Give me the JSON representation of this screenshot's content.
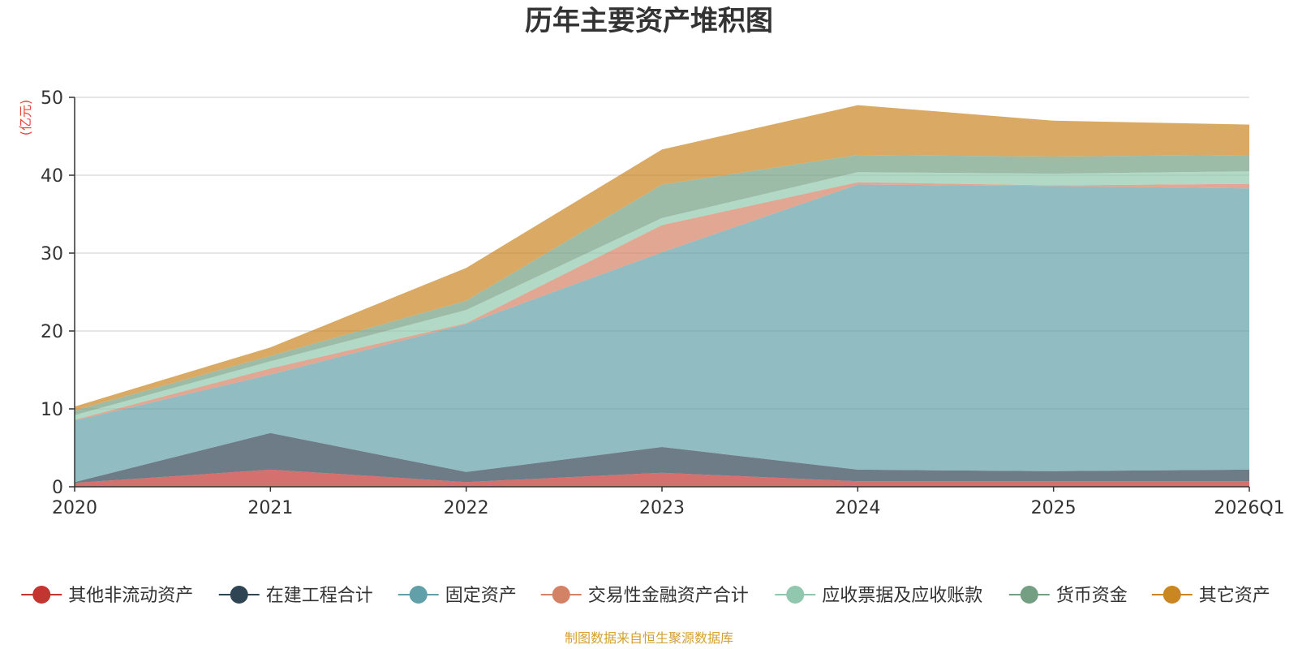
{
  "chart_data": {
    "type": "area",
    "stacked": true,
    "title": "历年主要资产堆积图",
    "unit_label": "(亿元)",
    "source": "制图数据来自恒生聚源数据库",
    "categories": [
      "2020",
      "2021",
      "2022",
      "2023",
      "2024",
      "2025",
      "2026Q1"
    ],
    "y_ticks": [
      "0",
      "10",
      "20",
      "30",
      "40",
      "50"
    ],
    "ylim": [
      0,
      50
    ],
    "series": [
      {
        "name": "其他非流动资产",
        "color": "#c23531",
        "values": [
          0.5,
          2.2,
          0.6,
          1.8,
          0.7,
          0.7,
          0.7
        ]
      },
      {
        "name": "在建工程合计",
        "color": "#2f4554",
        "values": [
          0.1,
          4.7,
          1.3,
          3.3,
          1.5,
          1.3,
          1.5
        ]
      },
      {
        "name": "固定资产",
        "color": "#61a0a8",
        "values": [
          7.9,
          7.5,
          19.0,
          25.0,
          36.6,
          36.6,
          36.1
        ]
      },
      {
        "name": "交易性金融资产合计",
        "color": "#d48265",
        "values": [
          0.1,
          0.8,
          0.1,
          3.5,
          0.3,
          0.1,
          0.6
        ]
      },
      {
        "name": "应收票据及应收账款",
        "color": "#91c7ae",
        "values": [
          0.6,
          0.9,
          1.7,
          0.9,
          1.3,
          1.5,
          1.6
        ]
      },
      {
        "name": "货币资金",
        "color": "#749f83",
        "values": [
          0.6,
          0.7,
          1.2,
          4.3,
          2.2,
          2.2,
          2.1
        ]
      },
      {
        "name": "其它资产",
        "color": "#ca8622",
        "values": [
          0.5,
          1.1,
          4.2,
          4.5,
          6.4,
          4.6,
          3.9
        ]
      }
    ]
  }
}
